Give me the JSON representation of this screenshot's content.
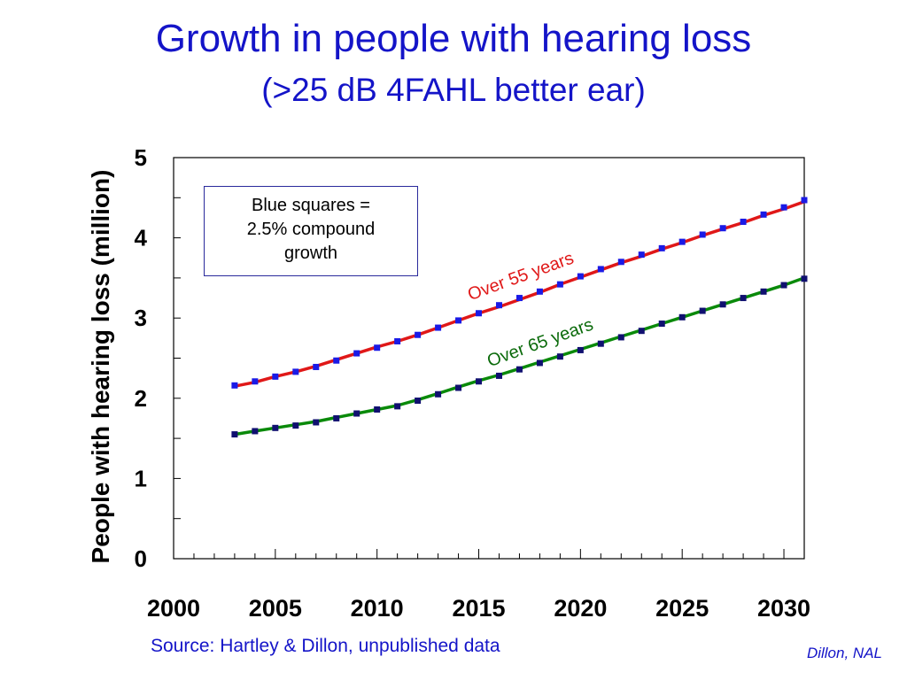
{
  "slide": {
    "title": "Growth in people with hearing loss",
    "subtitle": "(>25 dB 4FAHL better ear)",
    "source": "Source: Hartley & Dillon, unpublished data",
    "credit": "Dillon, NAL",
    "note_lines": [
      "Blue squares =",
      "2.5% compound",
      "growth"
    ]
  },
  "colors": {
    "title": "#1414c8",
    "over55_line": "#e01818",
    "over65_line": "#0a8a0a",
    "over55_marker": "#1a1ae6",
    "over65_marker": "#101070",
    "over55_label": "#e01818",
    "over65_label": "#0a6a0a"
  },
  "chart_data": {
    "type": "line",
    "ylabel": "People with hearing loss (million)",
    "xlabel": "",
    "xlim": [
      2000,
      2031
    ],
    "ylim": [
      0,
      5
    ],
    "x_ticks": [
      "2000",
      "2005",
      "2010",
      "2015",
      "2020",
      "2025",
      "2030"
    ],
    "y_ticks": [
      "0",
      "1",
      "2",
      "3",
      "4",
      "5"
    ],
    "grid": false,
    "series": [
      {
        "name": "Over 55 years",
        "x": [
          2003,
          2004,
          2005,
          2006,
          2007,
          2008,
          2009,
          2010,
          2011,
          2012,
          2013,
          2014,
          2015,
          2016,
          2017,
          2018,
          2019,
          2020,
          2021,
          2022,
          2023,
          2024,
          2025,
          2026,
          2027,
          2028,
          2029,
          2030,
          2031
        ],
        "line": [
          2.15,
          2.2,
          2.27,
          2.33,
          2.4,
          2.48,
          2.56,
          2.64,
          2.71,
          2.79,
          2.88,
          2.97,
          3.06,
          3.14,
          3.23,
          3.32,
          3.42,
          3.51,
          3.6,
          3.69,
          3.77,
          3.86,
          3.94,
          4.03,
          4.11,
          4.19,
          4.28,
          4.36,
          4.45
        ],
        "markers": [
          2.16,
          2.21,
          2.27,
          2.33,
          2.39,
          2.47,
          2.56,
          2.63,
          2.71,
          2.79,
          2.88,
          2.97,
          3.06,
          3.16,
          3.25,
          3.33,
          3.42,
          3.52,
          3.61,
          3.7,
          3.79,
          3.87,
          3.95,
          4.04,
          4.12,
          4.2,
          4.29,
          4.38,
          4.47
        ]
      },
      {
        "name": "Over 65 years",
        "x": [
          2003,
          2004,
          2005,
          2006,
          2007,
          2008,
          2009,
          2010,
          2011,
          2012,
          2013,
          2014,
          2015,
          2016,
          2017,
          2018,
          2019,
          2020,
          2021,
          2022,
          2023,
          2024,
          2025,
          2026,
          2027,
          2028,
          2029,
          2030,
          2031
        ],
        "line": [
          1.55,
          1.59,
          1.63,
          1.67,
          1.71,
          1.76,
          1.81,
          1.86,
          1.91,
          1.98,
          2.06,
          2.14,
          2.22,
          2.29,
          2.37,
          2.45,
          2.53,
          2.61,
          2.69,
          2.77,
          2.85,
          2.93,
          3.01,
          3.09,
          3.17,
          3.25,
          3.33,
          3.41,
          3.5
        ],
        "markers": [
          1.55,
          1.59,
          1.63,
          1.66,
          1.7,
          1.75,
          1.81,
          1.86,
          1.9,
          1.97,
          2.05,
          2.13,
          2.21,
          2.28,
          2.36,
          2.44,
          2.52,
          2.6,
          2.68,
          2.76,
          2.84,
          2.93,
          3.01,
          3.09,
          3.17,
          3.25,
          3.33,
          3.41,
          3.49
        ]
      }
    ]
  }
}
